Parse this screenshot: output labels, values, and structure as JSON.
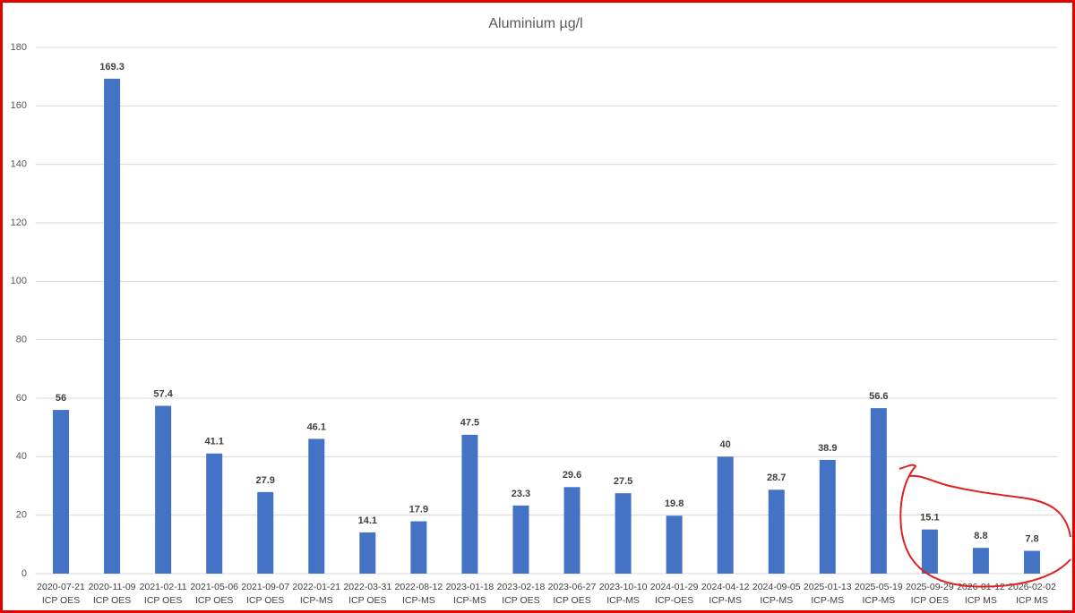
{
  "chart_data": {
    "type": "bar",
    "title": "Aluminium  µg/l",
    "categories": [
      [
        "2020-07-21",
        "ICP OES"
      ],
      [
        "2020-11-09",
        "ICP OES"
      ],
      [
        "2021-02-11",
        "ICP OES"
      ],
      [
        "2021-05-06",
        "ICP OES"
      ],
      [
        "2021-09-07",
        "ICP OES"
      ],
      [
        "2022-01-21",
        "ICP-MS"
      ],
      [
        "2022-03-31",
        "ICP OES"
      ],
      [
        "2022-08-12",
        "ICP-MS"
      ],
      [
        "2023-01-18",
        "ICP-MS"
      ],
      [
        "2023-02-18",
        "ICP OES"
      ],
      [
        "2023-06-27",
        "ICP OES"
      ],
      [
        "2023-10-10",
        "ICP-MS"
      ],
      [
        "2024-01-29",
        "ICP-OES"
      ],
      [
        "2024-04-12",
        "ICP-MS"
      ],
      [
        "2024-09-05",
        "ICP-MS"
      ],
      [
        "2025-01-13",
        "ICP-MS"
      ],
      [
        "2025-05-19",
        "ICP-MS"
      ],
      [
        "2025-09-29",
        "ICP OES"
      ],
      [
        "2026-01-12",
        "ICP MS"
      ],
      [
        "2026-02-02",
        "ICP MS"
      ]
    ],
    "values": [
      56,
      169.3,
      57.4,
      41.1,
      27.9,
      46.1,
      14.1,
      17.9,
      47.5,
      23.3,
      29.6,
      27.5,
      19.8,
      40,
      28.7,
      38.9,
      56.6,
      15.1,
      8.8,
      7.8
    ],
    "color": "#4472c4",
    "ylim": [
      0,
      180
    ],
    "yticks": [
      0,
      20,
      40,
      60,
      80,
      100,
      120,
      140,
      160,
      180
    ],
    "grid": true
  }
}
